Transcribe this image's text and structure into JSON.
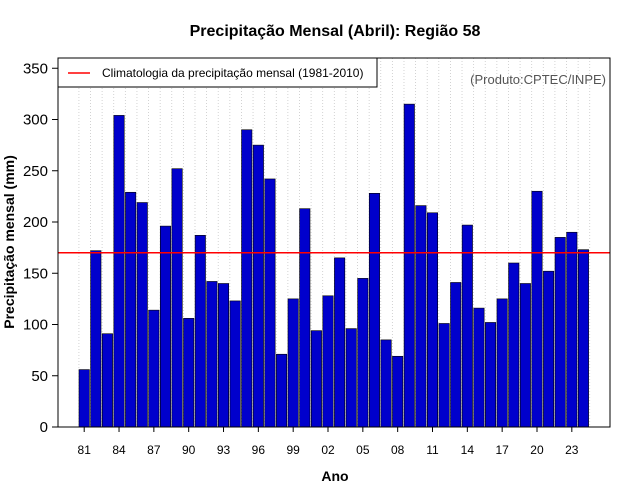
{
  "chart_data": {
    "type": "bar",
    "title": "Precipitação Mensal (Abril): Região 58",
    "xlabel": "Ano",
    "ylabel": "Precipitação mensal (mm)",
    "ylim": [
      0,
      360
    ],
    "yticks": [
      0,
      50,
      100,
      150,
      200,
      250,
      300,
      350
    ],
    "grid": "vertical dotted",
    "categories": [
      "1981",
      "1982",
      "1983",
      "1984",
      "1985",
      "1986",
      "1987",
      "1988",
      "1989",
      "1990",
      "1991",
      "1992",
      "1993",
      "1994",
      "1995",
      "1996",
      "1997",
      "1998",
      "1999",
      "2000",
      "2001",
      "2002",
      "2003",
      "2004",
      "2005",
      "2006",
      "2007",
      "2008",
      "2009",
      "2010",
      "2011",
      "2012",
      "2013",
      "2014",
      "2015",
      "2016",
      "2017",
      "2018",
      "2019",
      "2020",
      "2021",
      "2022",
      "2023",
      "2024"
    ],
    "values": [
      56,
      172,
      91,
      304,
      229,
      219,
      114,
      196,
      252,
      106,
      187,
      142,
      140,
      123,
      290,
      275,
      242,
      71,
      125,
      213,
      94,
      128,
      165,
      96,
      145,
      228,
      85,
      69,
      315,
      216,
      209,
      101,
      141,
      197,
      116,
      102,
      125,
      160,
      140,
      230,
      152,
      185,
      190,
      173
    ],
    "xtick_labels": [
      "81",
      "84",
      "87",
      "90",
      "93",
      "96",
      "99",
      "02",
      "05",
      "08",
      "11",
      "14",
      "17",
      "20",
      "23"
    ],
    "xtick_indices": [
      0,
      3,
      6,
      9,
      12,
      15,
      18,
      21,
      24,
      27,
      30,
      33,
      36,
      39,
      42
    ],
    "reference_line": {
      "name": "Climatologia da precipitação mensal (1981-2010)",
      "value": 170
    },
    "legend": {
      "placement": "top-left",
      "entries": [
        "Climatologia da precipitação mensal (1981-2010)"
      ]
    },
    "annotation": "(Produto:CPTEC/INPE)",
    "colors": {
      "bar_fill": "#0000cc",
      "bar_stroke": "#000000",
      "reference_line": "#ff0000",
      "grid": "#c8c8c8"
    }
  }
}
